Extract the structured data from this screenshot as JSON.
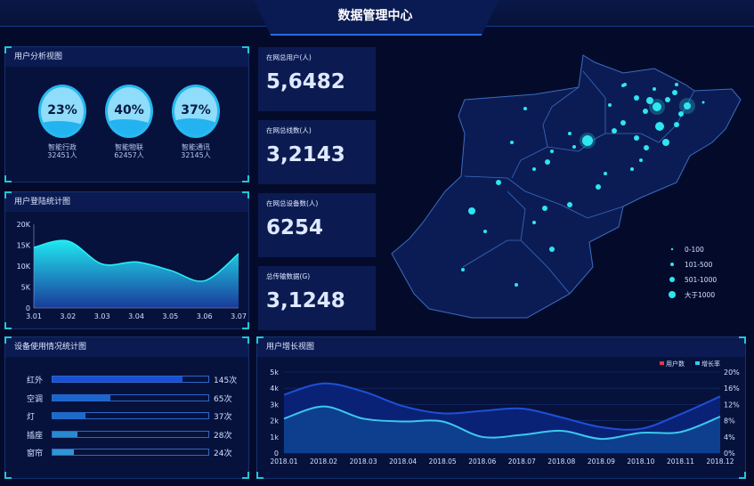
{
  "header": {
    "title": "数据管理中心"
  },
  "user_analysis": {
    "title": "用户分析视图",
    "items": [
      {
        "name": "智能行政",
        "count": "32451人",
        "percent": 23,
        "label": "23%"
      },
      {
        "name": "智能物联",
        "count": "62457人",
        "percent": 40,
        "label": "40%"
      },
      {
        "name": "智能通讯",
        "count": "32145人",
        "percent": 37,
        "label": "37%"
      }
    ]
  },
  "stats": [
    {
      "label": "在网总用户(人)",
      "value": "5,6482"
    },
    {
      "label": "在网总线数(人)",
      "value": "3,2143"
    },
    {
      "label": "在网总设备数(人)",
      "value": "6254"
    },
    {
      "label": "总传输数据(G)",
      "value": "3,1248"
    }
  ],
  "map": {
    "legend": [
      "0-100",
      "101-500",
      "501-1000",
      "大于1000"
    ],
    "accent": "#2ee6f0"
  },
  "device_usage": {
    "title": "设备使用情况统计图",
    "max": 174,
    "items": [
      {
        "name": "红外",
        "value": 145,
        "label": "145次",
        "color": "#1a4fd8"
      },
      {
        "name": "空调",
        "value": 65,
        "label": "65次",
        "color": "#1a66d0"
      },
      {
        "name": "灯",
        "value": 37,
        "label": "37次",
        "color": "#1a6ccc"
      },
      {
        "name": "插座",
        "value": 28,
        "label": "28次",
        "color": "#2a8ad0"
      },
      {
        "name": "窗帘",
        "value": 24,
        "label": "24次",
        "color": "#3096d4"
      }
    ]
  },
  "chart_data": [
    {
      "type": "area",
      "title": "用户登陆统计图",
      "categories": [
        "3.01",
        "3.02",
        "3.03",
        "3.04",
        "3.05",
        "3.06",
        "3.07"
      ],
      "values": [
        14500,
        16000,
        10500,
        11000,
        9000,
        6500,
        13000
      ],
      "ylim": [
        0,
        20000
      ],
      "yticks": [
        "0",
        "5K",
        "10K",
        "15K",
        "20K"
      ],
      "grid": false
    },
    {
      "type": "area",
      "title": "用户增长视图",
      "categories": [
        "2018.01",
        "2018.02",
        "2018.03",
        "2018.04",
        "2018.05",
        "2018.06",
        "2018.07",
        "2018.08",
        "2018.09",
        "2018.10",
        "2018.11",
        "2018.12"
      ],
      "series": [
        {
          "name": "用户数",
          "axis": "left",
          "color": "#e8344a",
          "values": [
            3600,
            4300,
            3800,
            2900,
            2450,
            2600,
            2750,
            2200,
            1600,
            1500,
            2400,
            3500
          ]
        },
        {
          "name": "增长率",
          "axis": "right",
          "color": "#3cc8f0",
          "values": [
            8.5,
            11.5,
            8.5,
            7.8,
            7.8,
            4,
            4.5,
            5.5,
            3.5,
            5,
            5.2,
            9
          ]
        }
      ],
      "ylim_left": [
        0,
        5000
      ],
      "ylim_right": [
        0,
        20
      ],
      "yticks_left": [
        "0",
        "1k",
        "2k",
        "3k",
        "4k",
        "5k"
      ],
      "yticks_right": [
        "0%",
        "4%",
        "8%",
        "12%",
        "16%",
        "20%"
      ],
      "legend_position": "top-right",
      "grid": true
    }
  ]
}
